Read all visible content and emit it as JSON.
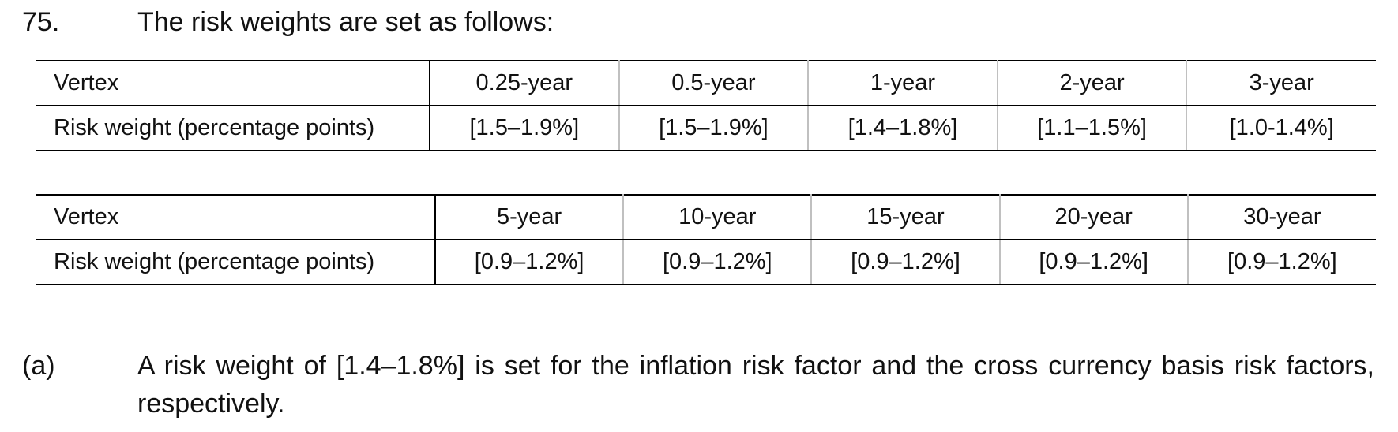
{
  "paragraph": {
    "number": "75.",
    "text": "The risk weights are set as follows:"
  },
  "tables": [
    {
      "row_labels": [
        "Vertex",
        "Risk weight (percentage points)"
      ],
      "vertices": [
        "0.25-year",
        "0.5-year",
        "1-year",
        "2-year",
        "3-year"
      ],
      "weights": [
        "[1.5–1.9%]",
        "[1.5–1.9%]",
        "[1.4–1.8%]",
        "[1.1–1.5%]",
        "[1.0-1.4%]"
      ]
    },
    {
      "row_labels": [
        "Vertex",
        "Risk weight (percentage points)"
      ],
      "vertices": [
        "5-year",
        "10-year",
        "15-year",
        "20-year",
        "30-year"
      ],
      "weights": [
        "[0.9–1.2%]",
        "[0.9–1.2%]",
        "[0.9–1.2%]",
        "[0.9–1.2%]",
        "[0.9–1.2%]"
      ]
    }
  ],
  "sub_paragraph": {
    "label": "(a)",
    "text": "A risk weight of [1.4–1.8%] is set for the inflation risk factor and the cross currency basis risk factors, respectively."
  }
}
